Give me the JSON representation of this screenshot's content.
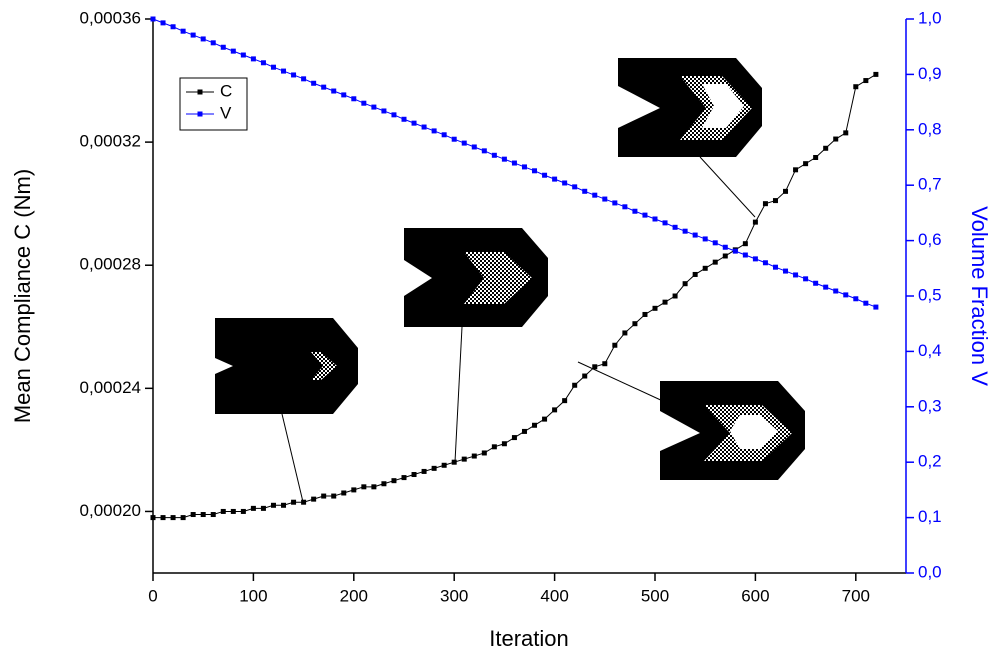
{
  "chart_data": {
    "type": "line",
    "x_label": "Iteration",
    "y_label": "Mean Compliance C (Nm)",
    "y2_label": "Volume Fraction V",
    "x": [
      0,
      10,
      20,
      30,
      40,
      50,
      60,
      70,
      80,
      90,
      100,
      110,
      120,
      130,
      140,
      150,
      160,
      170,
      180,
      190,
      200,
      210,
      220,
      230,
      240,
      250,
      260,
      270,
      280,
      290,
      300,
      310,
      320,
      330,
      340,
      350,
      360,
      370,
      380,
      390,
      400,
      410,
      420,
      430,
      440,
      450,
      460,
      470,
      480,
      490,
      500,
      510,
      520,
      530,
      540,
      550,
      560,
      570,
      580,
      590,
      600,
      610,
      620,
      630,
      640,
      650,
      660,
      670,
      680,
      690,
      700,
      710,
      720
    ],
    "series": [
      {
        "name": "C",
        "color": "#000000",
        "values": [
          0.000198,
          0.000198,
          0.000198,
          0.000198,
          0.000199,
          0.000199,
          0.000199,
          0.0002,
          0.0002,
          0.0002,
          0.000201,
          0.000201,
          0.000202,
          0.000202,
          0.000203,
          0.000203,
          0.000204,
          0.000205,
          0.000205,
          0.000206,
          0.000207,
          0.000208,
          0.000208,
          0.000209,
          0.00021,
          0.000211,
          0.000212,
          0.000213,
          0.000214,
          0.000215,
          0.000216,
          0.000217,
          0.000218,
          0.000219,
          0.000221,
          0.000222,
          0.000224,
          0.000226,
          0.000228,
          0.00023,
          0.000233,
          0.000236,
          0.000241,
          0.000244,
          0.000247,
          0.000248,
          0.000254,
          0.000258,
          0.000261,
          0.000264,
          0.000266,
          0.000268,
          0.00027,
          0.000274,
          0.000277,
          0.000279,
          0.000281,
          0.000283,
          0.000285,
          0.000287,
          0.000294,
          0.0003,
          0.000301,
          0.000304,
          0.000311,
          0.000313,
          0.000315,
          0.000318,
          0.000321,
          0.000323,
          0.000338,
          0.00034,
          0.000342
        ]
      },
      {
        "name": "V",
        "color": "#0000ff",
        "axis": "y2",
        "values": [
          1.0,
          0.993,
          0.986,
          0.978,
          0.971,
          0.964,
          0.957,
          0.949,
          0.942,
          0.935,
          0.928,
          0.921,
          0.913,
          0.906,
          0.899,
          0.892,
          0.884,
          0.877,
          0.87,
          0.863,
          0.856,
          0.848,
          0.841,
          0.834,
          0.827,
          0.819,
          0.812,
          0.805,
          0.798,
          0.791,
          0.783,
          0.776,
          0.769,
          0.762,
          0.754,
          0.747,
          0.74,
          0.733,
          0.726,
          0.718,
          0.711,
          0.704,
          0.697,
          0.689,
          0.682,
          0.675,
          0.668,
          0.661,
          0.653,
          0.646,
          0.639,
          0.632,
          0.624,
          0.617,
          0.61,
          0.603,
          0.596,
          0.588,
          0.581,
          0.574,
          0.567,
          0.56,
          0.552,
          0.545,
          0.538,
          0.531,
          0.523,
          0.516,
          0.509,
          0.502,
          0.495,
          0.487,
          0.48
        ]
      }
    ],
    "xlim": [
      0,
      750
    ],
    "xticks": [
      0,
      100,
      200,
      300,
      400,
      500,
      600,
      700
    ],
    "ylim": [
      0.00018,
      0.00036
    ],
    "yticks": [
      {
        "value": 0.0002,
        "label": "0,00020"
      },
      {
        "value": 0.00024,
        "label": "0,00024"
      },
      {
        "value": 0.00028,
        "label": "0,00028"
      },
      {
        "value": 0.00032,
        "label": "0,00032"
      },
      {
        "value": 0.00036,
        "label": "0,00036"
      }
    ],
    "y2lim": [
      0,
      1
    ],
    "y2ticks": [
      {
        "value": 0,
        "label": "0,0"
      },
      {
        "value": 0.1,
        "label": "0,1"
      },
      {
        "value": 0.2,
        "label": "0,2"
      },
      {
        "value": 0.3,
        "label": "0,3"
      },
      {
        "value": 0.4,
        "label": "0,4"
      },
      {
        "value": 0.5,
        "label": "0,5"
      },
      {
        "value": 0.6,
        "label": "0,6"
      },
      {
        "value": 0.7,
        "label": "0,7"
      },
      {
        "value": 0.8,
        "label": "0,8"
      },
      {
        "value": 0.9,
        "label": "0,9"
      },
      {
        "value": 1,
        "label": "1,0"
      }
    ],
    "y2_color": "#0000ff",
    "legend": "top-left",
    "grid": false
  }
}
